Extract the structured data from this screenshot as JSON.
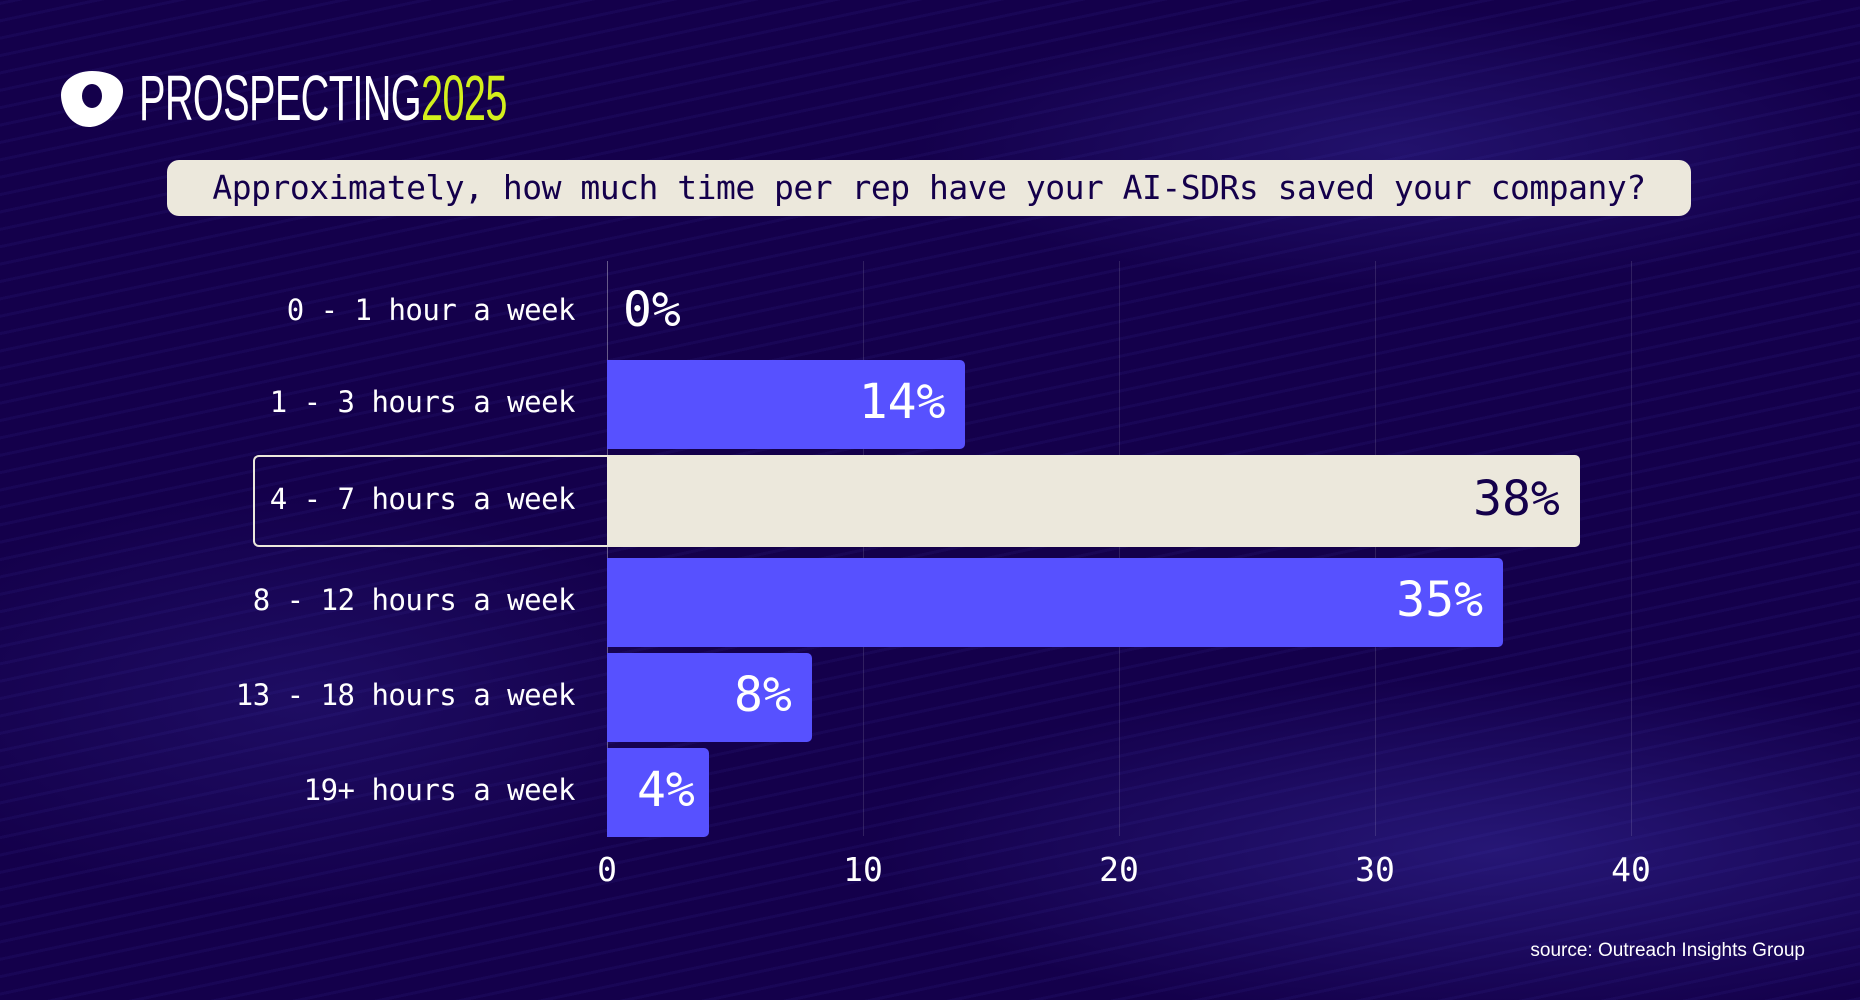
{
  "brand": {
    "name": "PROSPECTING",
    "year": "2025",
    "logo": "outreach-logo",
    "accent_color": "#d4f01c"
  },
  "chart_data": {
    "type": "bar",
    "orientation": "horizontal",
    "title": "Approximately, how much time per rep have your AI-SDRs saved your company?",
    "categories": [
      "0 - 1 hour a week",
      "1 - 3 hours a week",
      "4 - 7 hours a week",
      "8 - 12 hours a week",
      "13 - 18 hours a week",
      "19+ hours a week"
    ],
    "values": [
      0,
      14,
      38,
      35,
      8,
      4
    ],
    "data_labels": [
      "0%",
      "14%",
      "38%",
      "35%",
      "8%",
      "4%"
    ],
    "highlighted_category": "4 - 7 hours a week",
    "xlim": [
      0,
      40
    ],
    "xticks": [
      "0",
      "10",
      "20",
      "30",
      "40"
    ],
    "grid": "vertical",
    "colors": {
      "bar": "#5751ff",
      "highlight": "#ece8dc",
      "background": "#14004b"
    }
  },
  "source": "source: Outreach Insights Group"
}
